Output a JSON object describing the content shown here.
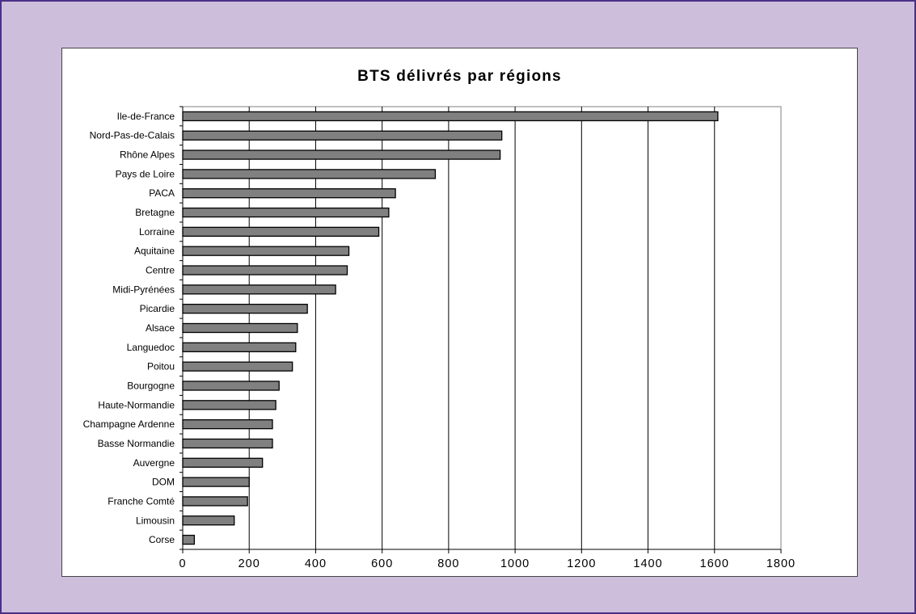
{
  "chart_data": {
    "type": "bar",
    "orientation": "horizontal",
    "title": "BTS  délivrés  par  régions",
    "categories": [
      "Ile-de-France",
      "Nord-Pas-de-Calais",
      "Rhône Alpes",
      "Pays de Loire",
      "PACA",
      "Bretagne",
      "Lorraine",
      "Aquitaine",
      "Centre",
      "Midi-Pyrénées",
      "Picardie",
      "Alsace",
      "Languedoc",
      "Poitou",
      "Bourgogne",
      "Haute-Normandie",
      "Champagne Ardenne",
      "Basse Normandie",
      "Auvergne",
      "DOM",
      "Franche Comté",
      "Limousin",
      "Corse"
    ],
    "values": [
      1610,
      960,
      955,
      760,
      640,
      620,
      590,
      500,
      495,
      460,
      375,
      345,
      340,
      330,
      290,
      280,
      270,
      270,
      240,
      200,
      195,
      155,
      35
    ],
    "xlim": [
      0,
      1800
    ],
    "xticks": [
      "0",
      "200",
      "400",
      "600",
      "800",
      "1000",
      "1200",
      "1400",
      "1600",
      "1800"
    ],
    "grid": "vertical",
    "legend": "none"
  },
  "colors": {
    "background": "#cdbfdc",
    "frame_border": "#4b2f86",
    "bar_fill": "#808080",
    "bar_stroke": "#000000"
  }
}
